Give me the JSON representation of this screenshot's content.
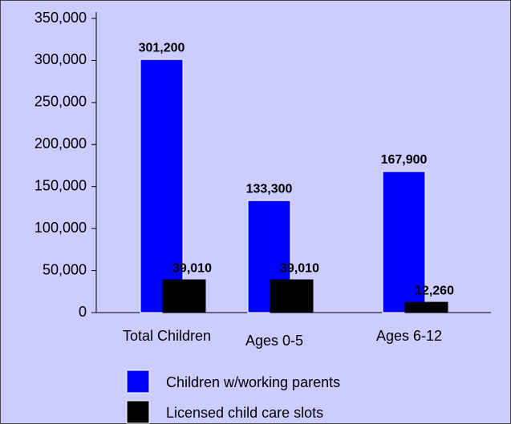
{
  "chart_data": {
    "type": "bar",
    "categories": [
      "Total Children",
      "Ages 0-5",
      "Ages 6-12"
    ],
    "series": [
      {
        "name": "Children w/working parents",
        "color": "#0000ff",
        "values": [
          301200,
          133300,
          167900
        ],
        "value_labels": [
          "301,200",
          "133,300",
          "167,900"
        ]
      },
      {
        "name": "Licensed child care slots",
        "color": "#000000",
        "values": [
          39010,
          39010,
          12260
        ],
        "value_labels": [
          "39,010",
          "39,010",
          "12,260"
        ]
      }
    ],
    "ylim": [
      0,
      350000
    ],
    "yticks": [
      0,
      {
        "value": 50000,
        "label": "50,000"
      },
      {
        "value": 100000,
        "label": "100,000"
      },
      {
        "value": 150000,
        "label": "150,000"
      },
      {
        "value": 200000,
        "label": "200,000"
      },
      {
        "value": 250000,
        "label": "250,000"
      },
      {
        "value": 300000,
        "label": "300,000"
      },
      {
        "value": 350000,
        "label": "350,000"
      }
    ],
    "grid": false,
    "legend": "bottom"
  }
}
